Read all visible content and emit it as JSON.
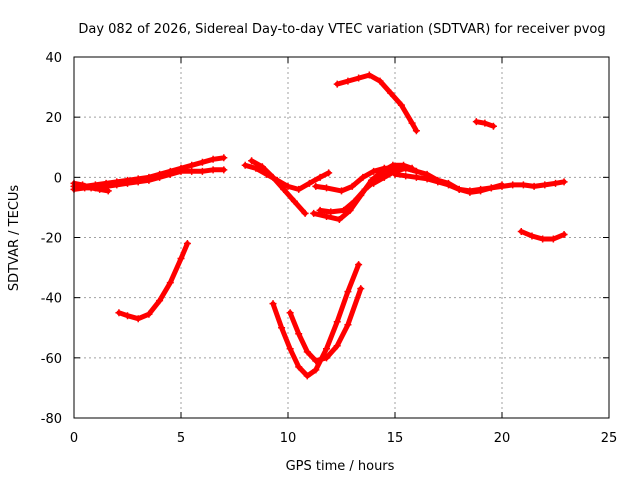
{
  "chart_data": {
    "type": "scatter",
    "title": "Day 082 of 2026, Sidereal Day-to-day VTEC variation (SDTVAR) for receiver pvog",
    "xlabel": "GPS time / hours",
    "ylabel": "SDTVAR / TECUs",
    "xlim": [
      0,
      25
    ],
    "ylim": [
      -80,
      40
    ],
    "xticks": [
      0,
      5,
      10,
      15,
      20,
      25
    ],
    "yticks": [
      -80,
      -60,
      -40,
      -20,
      0,
      20,
      40
    ],
    "xtick_labels": [
      "0",
      "5",
      "10",
      "15",
      "20",
      "25"
    ],
    "ytick_labels": [
      "-80",
      "-60",
      "-40",
      "-20",
      "0",
      "20",
      "40"
    ],
    "grid": true,
    "marker_color": "#ff0000",
    "series": [
      {
        "name": "s1",
        "points": [
          [
            0,
            -3
          ],
          [
            0.5,
            -3
          ],
          [
            1,
            -2.5
          ],
          [
            1.5,
            -2
          ],
          [
            2,
            -1.5
          ],
          [
            2.5,
            -1
          ],
          [
            3,
            -0.5
          ],
          [
            3.5,
            0
          ],
          [
            4,
            1
          ],
          [
            4.5,
            2
          ],
          [
            5,
            3
          ],
          [
            5.5,
            4
          ],
          [
            6,
            5
          ],
          [
            6.5,
            6
          ],
          [
            7,
            6.5
          ]
        ]
      },
      {
        "name": "s2",
        "points": [
          [
            0,
            -4
          ],
          [
            0.5,
            -3.5
          ],
          [
            1,
            -3.5
          ],
          [
            1.5,
            -3
          ],
          [
            2,
            -2.5
          ],
          [
            2.5,
            -2
          ],
          [
            3,
            -1.5
          ],
          [
            3.5,
            -1
          ],
          [
            4,
            0
          ],
          [
            4.5,
            1
          ],
          [
            5,
            2
          ],
          [
            5.5,
            2
          ],
          [
            6,
            2
          ],
          [
            6.5,
            2.5
          ],
          [
            7,
            2.5
          ]
        ]
      },
      {
        "name": "s3",
        "points": [
          [
            0,
            -2
          ],
          [
            0.4,
            -2.5
          ],
          [
            0.8,
            -3.5
          ],
          [
            1.2,
            -4
          ],
          [
            1.6,
            -4.5
          ]
        ]
      },
      {
        "name": "s4",
        "points": [
          [
            2.1,
            -45
          ],
          [
            2.5,
            -46
          ],
          [
            3,
            -47
          ],
          [
            3.5,
            -45.5
          ],
          [
            4,
            -41
          ],
          [
            4.5,
            -35
          ],
          [
            5,
            -27
          ],
          [
            5.3,
            -22
          ]
        ]
      },
      {
        "name": "s5",
        "points": [
          [
            8,
            4
          ],
          [
            8.5,
            3
          ],
          [
            9,
            1
          ],
          [
            9.5,
            -1
          ],
          [
            10,
            -3
          ],
          [
            10.5,
            -4
          ],
          [
            11,
            -2
          ],
          [
            11.5,
            0
          ],
          [
            11.9,
            1.5
          ]
        ]
      },
      {
        "name": "s6",
        "points": [
          [
            8.3,
            5.5
          ],
          [
            8.8,
            3.5
          ],
          [
            9.3,
            0
          ],
          [
            9.8,
            -4
          ],
          [
            10.3,
            -8
          ],
          [
            10.8,
            -12
          ]
        ]
      },
      {
        "name": "s7",
        "points": [
          [
            9.3,
            -42
          ],
          [
            9.7,
            -50
          ],
          [
            10.1,
            -57
          ],
          [
            10.5,
            -63
          ],
          [
            10.9,
            -66
          ],
          [
            11.3,
            -64
          ],
          [
            11.8,
            -57
          ],
          [
            12.3,
            -48
          ],
          [
            12.8,
            -38
          ],
          [
            13.3,
            -29
          ]
        ]
      },
      {
        "name": "s8",
        "points": [
          [
            10.1,
            -45
          ],
          [
            10.5,
            -52
          ],
          [
            10.9,
            -58
          ],
          [
            11.3,
            -61
          ],
          [
            11.8,
            -60
          ],
          [
            12.3,
            -56
          ],
          [
            12.8,
            -49
          ],
          [
            13.4,
            -37
          ]
        ]
      },
      {
        "name": "s9",
        "points": [
          [
            11.2,
            -12
          ],
          [
            11.8,
            -13
          ],
          [
            12.4,
            -14
          ],
          [
            12.9,
            -11
          ],
          [
            13.4,
            -6
          ],
          [
            13.9,
            -1
          ],
          [
            14.4,
            2
          ],
          [
            14.9,
            4
          ],
          [
            15.4,
            4
          ],
          [
            15.8,
            3
          ]
        ]
      },
      {
        "name": "s10",
        "points": [
          [
            11.3,
            -3
          ],
          [
            11.8,
            -3.5
          ],
          [
            12.5,
            -4.5
          ],
          [
            13,
            -3
          ],
          [
            13.5,
            0
          ],
          [
            14,
            2
          ],
          [
            14.5,
            3
          ],
          [
            15,
            3
          ],
          [
            15.5,
            3
          ],
          [
            16,
            2
          ]
        ]
      },
      {
        "name": "s11",
        "points": [
          [
            11.5,
            -11
          ],
          [
            12,
            -11.5
          ],
          [
            12.6,
            -11
          ],
          [
            13.1,
            -8
          ],
          [
            13.6,
            -4
          ],
          [
            14.1,
            -1
          ],
          [
            14.6,
            1
          ],
          [
            15.1,
            3
          ]
        ]
      },
      {
        "name": "s12",
        "points": [
          [
            12.3,
            31
          ],
          [
            12.8,
            32
          ],
          [
            13.3,
            33
          ],
          [
            13.8,
            34
          ],
          [
            14.3,
            32
          ],
          [
            14.8,
            28
          ],
          [
            15.3,
            24
          ],
          [
            15.8,
            18
          ],
          [
            16,
            15.5
          ]
        ]
      },
      {
        "name": "s13",
        "points": [
          [
            14,
            -2
          ],
          [
            14.5,
            0
          ],
          [
            15,
            2
          ],
          [
            15.5,
            3
          ],
          [
            16,
            2
          ],
          [
            16.5,
            1
          ],
          [
            17,
            -1
          ],
          [
            17.5,
            -2
          ],
          [
            18,
            -4
          ],
          [
            18.5,
            -5
          ],
          [
            19,
            -4.5
          ],
          [
            19.5,
            -3.5
          ],
          [
            20,
            -3
          ],
          [
            20.5,
            -2.5
          ],
          [
            21,
            -2.5
          ],
          [
            21.5,
            -3
          ],
          [
            22,
            -2.5
          ],
          [
            22.5,
            -2
          ],
          [
            22.9,
            -1.5
          ]
        ]
      },
      {
        "name": "s14",
        "points": [
          [
            15,
            1
          ],
          [
            15.5,
            0.5
          ],
          [
            16,
            0
          ],
          [
            16.5,
            -0.5
          ],
          [
            17,
            -1.5
          ],
          [
            17.5,
            -2.5
          ],
          [
            18,
            -4
          ],
          [
            18.5,
            -4.5
          ],
          [
            19,
            -4
          ],
          [
            19.5,
            -3.5
          ],
          [
            20,
            -2.5
          ]
        ]
      },
      {
        "name": "s15",
        "points": [
          [
            18.8,
            18.5
          ],
          [
            19.2,
            18
          ],
          [
            19.6,
            17
          ]
        ]
      },
      {
        "name": "s16",
        "points": [
          [
            20.9,
            -18
          ],
          [
            21.4,
            -19.5
          ],
          [
            21.9,
            -20.5
          ],
          [
            22.4,
            -20.5
          ],
          [
            22.9,
            -19
          ]
        ]
      }
    ]
  }
}
